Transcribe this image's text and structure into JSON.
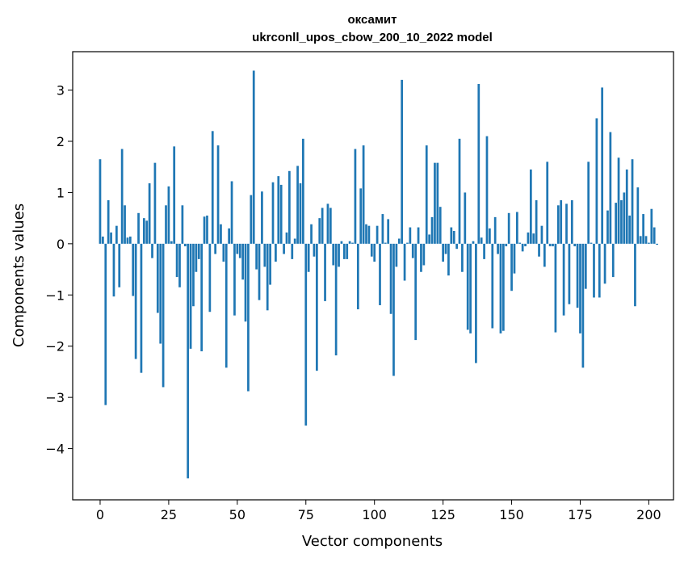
{
  "chart_data": {
    "type": "bar",
    "title": "оксамит",
    "subtitle": "ukrconll_upos_cbow_200_10_2022 model",
    "xlabel": "Vector components",
    "ylabel": "Components values",
    "xlim": [
      -10,
      209
    ],
    "ylim": [
      -5.0,
      3.75
    ],
    "xticks": [
      0,
      25,
      50,
      75,
      100,
      125,
      150,
      175,
      200
    ],
    "yticks": [
      -4,
      -3,
      -2,
      -1,
      0,
      1,
      2,
      3
    ],
    "bar_color": "#1f77b4",
    "grid": false,
    "values": [
      1.65,
      0.14,
      -3.15,
      0.85,
      0.22,
      -1.03,
      0.35,
      -0.85,
      1.85,
      0.75,
      0.12,
      0.14,
      -1.02,
      -2.25,
      0.6,
      -2.52,
      0.5,
      0.45,
      1.18,
      -0.28,
      1.58,
      -1.35,
      -1.95,
      -2.8,
      0.75,
      1.12,
      0.05,
      1.9,
      -0.65,
      -0.85,
      0.75,
      -0.05,
      -4.58,
      -2.05,
      -1.22,
      -0.55,
      -0.3,
      -2.1,
      0.53,
      0.55,
      -1.33,
      2.2,
      -0.2,
      1.92,
      0.38,
      -0.35,
      -2.42,
      0.3,
      1.22,
      -1.4,
      -0.2,
      -0.28,
      -0.7,
      -1.52,
      -2.88,
      0.95,
      3.38,
      -0.5,
      -1.1,
      1.02,
      -0.45,
      -1.3,
      -0.8,
      1.2,
      -0.35,
      1.32,
      1.15,
      -0.2,
      0.22,
      1.42,
      -0.3,
      0.1,
      1.52,
      1.18,
      2.05,
      -3.55,
      -0.55,
      0.38,
      -0.25,
      -2.48,
      0.5,
      0.7,
      -1.12,
      0.78,
      0.7,
      -0.42,
      -2.18,
      -0.45,
      0.05,
      -0.3,
      -0.3,
      0.05,
      0.02,
      1.85,
      -1.28,
      1.08,
      1.92,
      0.38,
      0.35,
      -0.25,
      -0.35,
      0.35,
      -1.2,
      0.58,
      0.02,
      0.48,
      -1.37,
      -2.58,
      -0.45,
      0.1,
      3.2,
      -0.72,
      0.02,
      0.32,
      -0.28,
      -1.88,
      0.32,
      -0.55,
      -0.42,
      1.92,
      0.18,
      0.52,
      1.58,
      1.58,
      0.72,
      -0.35,
      -0.2,
      -0.62,
      0.32,
      0.25,
      -0.1,
      2.05,
      -0.55,
      1.0,
      -1.68,
      -1.75,
      0.05,
      -2.33,
      3.12,
      0.12,
      -0.3,
      2.1,
      0.3,
      -1.65,
      0.52,
      -0.2,
      -1.75,
      -1.7,
      -0.05,
      0.6,
      -0.92,
      -0.58,
      0.62,
      0.02,
      -0.15,
      -0.05,
      0.22,
      1.45,
      0.2,
      0.85,
      -0.25,
      0.35,
      -0.45,
      1.6,
      -0.05,
      -0.05,
      -1.73,
      0.75,
      0.85,
      -1.4,
      0.78,
      -1.18,
      0.85,
      -0.05,
      -1.25,
      -1.75,
      -2.42,
      -0.88,
      1.6,
      0.02,
      -1.05,
      2.45,
      -1.05,
      3.05,
      -0.78,
      0.65,
      2.18,
      -0.65,
      0.8,
      1.68,
      0.85,
      1.0,
      1.45,
      0.55,
      1.65,
      -1.22,
      1.1,
      0.15,
      0.58,
      0.15,
      0.02,
      0.68,
      0.32,
      -0.02
    ]
  }
}
